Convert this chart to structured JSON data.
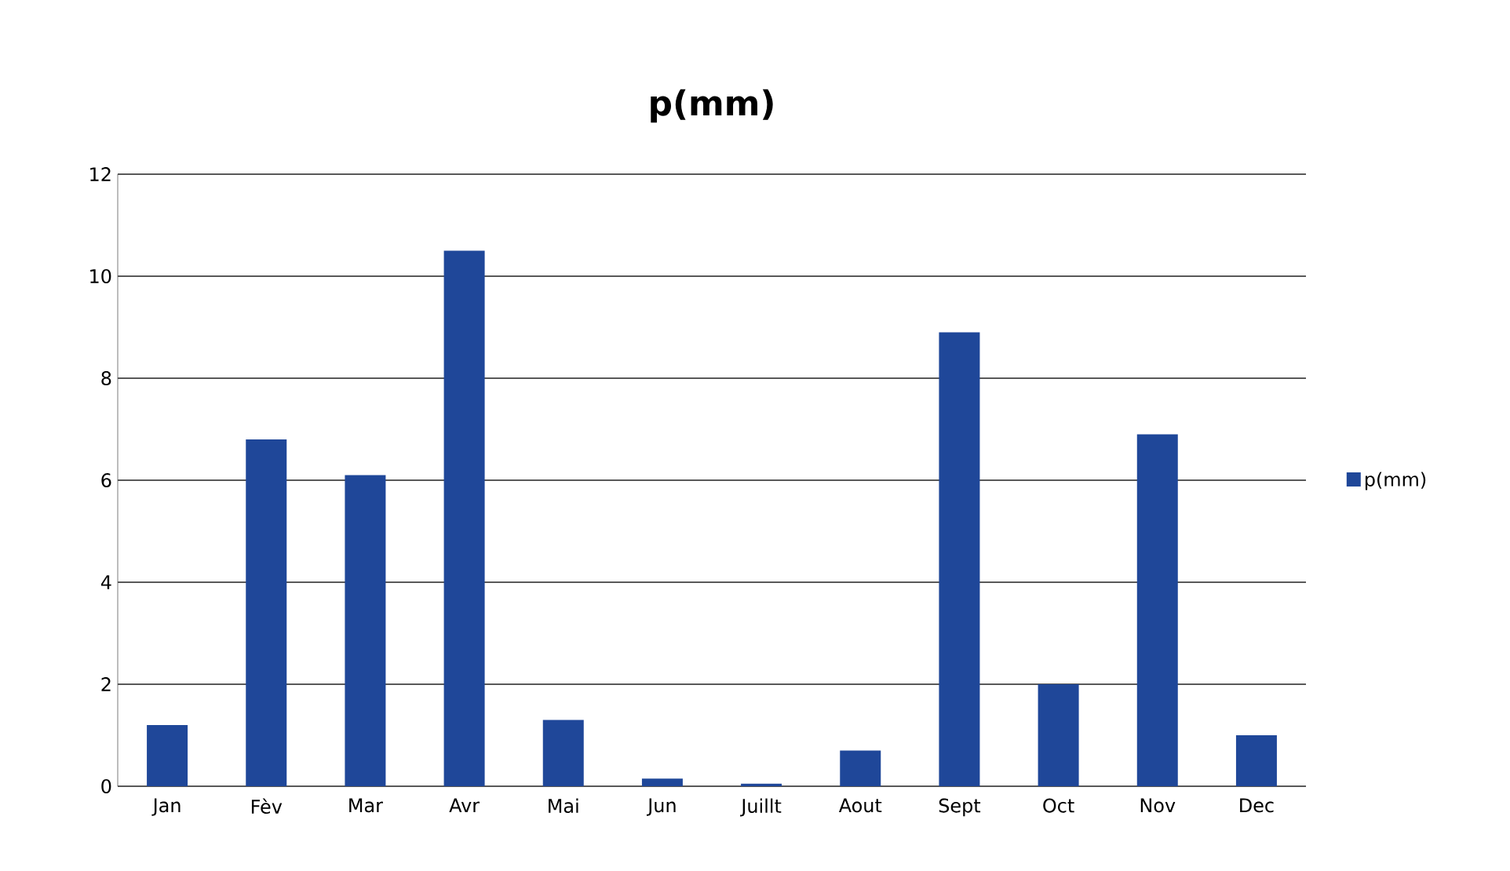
{
  "chart_data": {
    "type": "bar",
    "title": "p(mm)",
    "categories": [
      "Jan",
      "Fèv",
      "Mar",
      "Avr",
      "Mai",
      "Jun",
      "Juillt",
      "Aout",
      "Sept",
      "Oct",
      "Nov",
      "Dec"
    ],
    "series": [
      {
        "name": "p(mm)",
        "color": "#1f4799",
        "values": [
          1.2,
          6.8,
          6.1,
          10.5,
          1.3,
          0.15,
          0.05,
          0.7,
          8.9,
          2.0,
          6.9,
          1.0
        ]
      }
    ],
    "ylim": [
      0,
      12
    ],
    "yticks": [
      0,
      2,
      4,
      6,
      8,
      10,
      12
    ],
    "grid": "y",
    "legend": "right"
  }
}
